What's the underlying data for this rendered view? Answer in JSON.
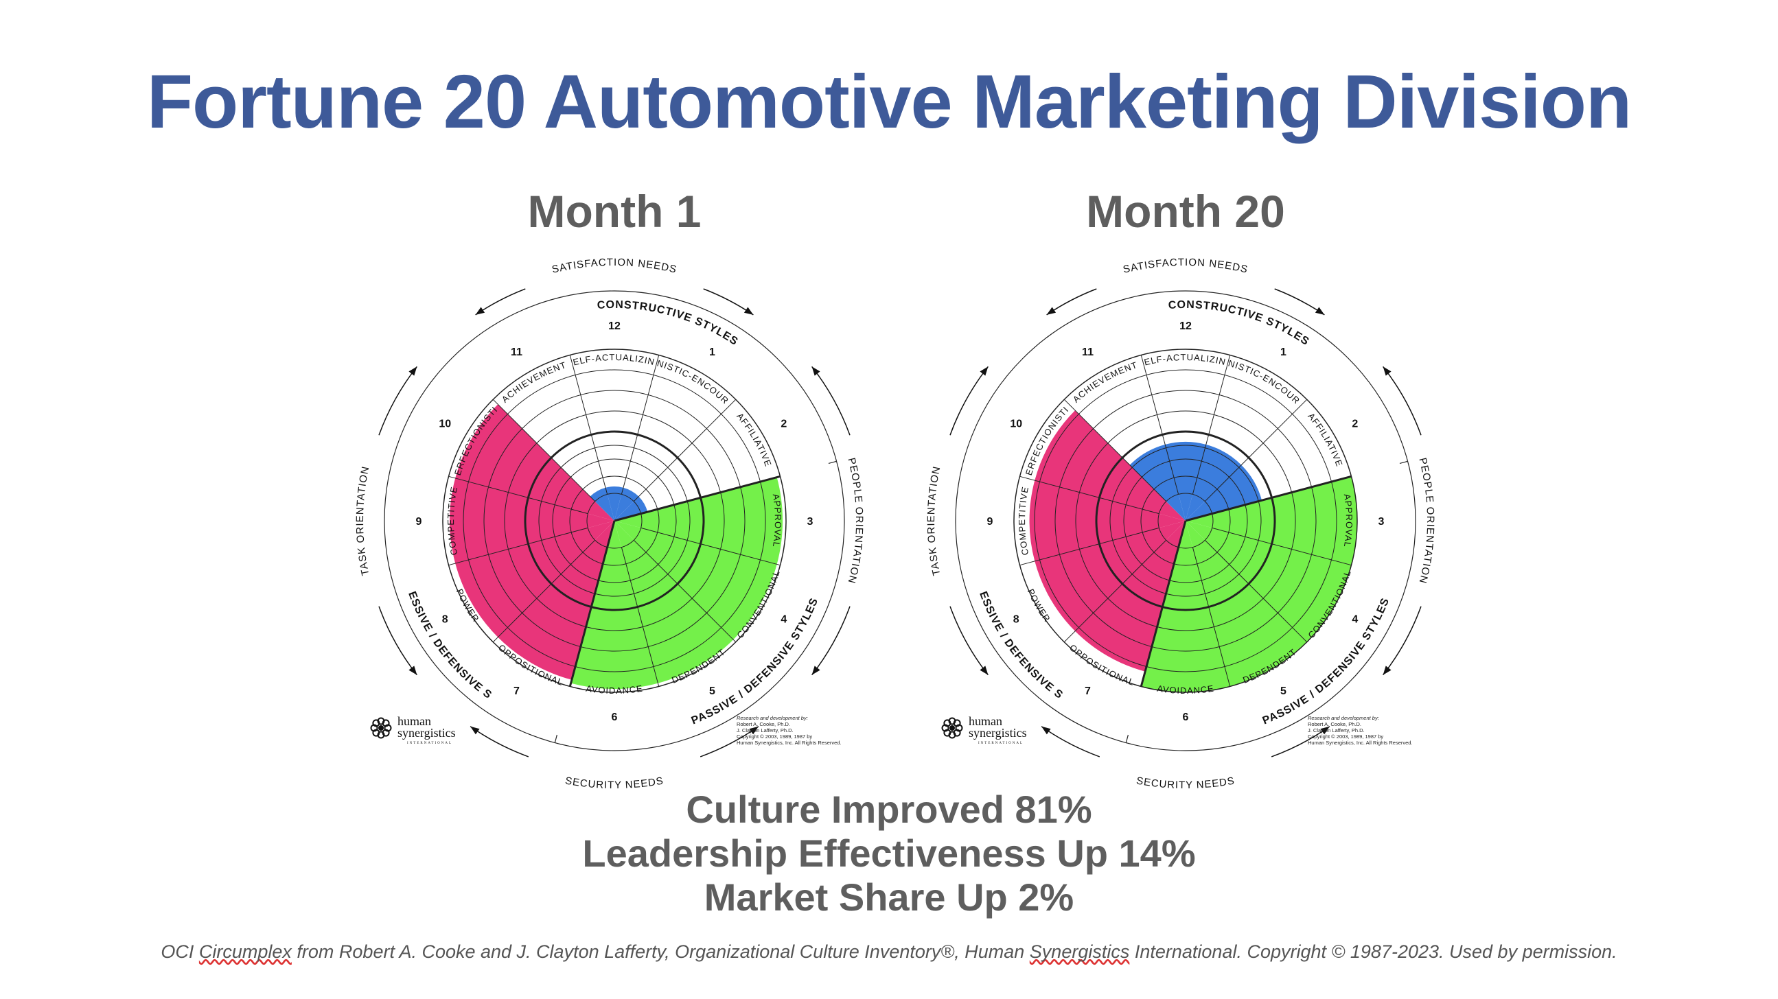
{
  "slide": {
    "title": "Fortune 20 Automotive Marketing Division",
    "results": [
      "Culture Improved 81%",
      "Leadership Effectiveness Up 14%",
      "Market Share Up 2%"
    ],
    "footnote": {
      "pre": "OCI ",
      "w1": "Circumplex",
      "mid": " from Robert A. Cooke and J. Clayton Lafferty, Organizational Culture Inventory®, Human ",
      "w2": "Synergistics",
      "post": " International. Copyright © 1987-2023. Used by permission."
    }
  },
  "circumplex_labels": {
    "styles": [
      "Self-Actualizing",
      "Humanistic-Encouraging",
      "Affiliative",
      "Approval",
      "Conventional",
      "Dependent",
      "Avoidance",
      "Oppositional",
      "Power",
      "Competitive",
      "Perfectionistic",
      "Achievement"
    ],
    "numbers": [
      "12",
      "1",
      "2",
      "3",
      "4",
      "5",
      "6",
      "7",
      "8",
      "9",
      "10",
      "11"
    ],
    "groups": [
      "CONSTRUCTIVE STYLES",
      "PASSIVE / DEFENSIVE STYLES",
      "AGGRESSIVE / DEFENSIVE STYLES"
    ],
    "needs": [
      "SATISFACTION NEEDS",
      "SECURITY NEEDS"
    ],
    "orientations": [
      "PEOPLE ORIENTATION",
      "TASK ORIENTATION"
    ],
    "logo": {
      "line1": "human",
      "line2": "synergistics",
      "line3": "INTERNATIONAL"
    },
    "credit": [
      "Research and development by:",
      "Robert A. Cooke, Ph.D.",
      "J. Clayton Lafferty, Ph.D.",
      "Copyright © 2003, 1989, 1987 by",
      "Human Synergistics, Inc. All Rights Reserved."
    ]
  },
  "chart_data": [
    {
      "type": "circumplex",
      "title": "Month 1",
      "clusters": [
        {
          "name": "Constructive",
          "color": "#3b7ddd",
          "styles": [
            "Self-Actualizing",
            "Humanistic-Encouraging",
            "Affiliative",
            "Achievement"
          ],
          "level": 0.2
        },
        {
          "name": "Passive / Defensive",
          "color": "#74f04a",
          "styles": [
            "Approval",
            "Conventional",
            "Dependent",
            "Avoidance"
          ],
          "level": 0.98
        },
        {
          "name": "Aggressive / Defensive",
          "color": "#e8357a",
          "styles": [
            "Oppositional",
            "Power",
            "Competitive",
            "Perfectionistic"
          ],
          "level": 0.96
        }
      ]
    },
    {
      "type": "circumplex",
      "title": "Month 20",
      "clusters": [
        {
          "name": "Constructive",
          "color": "#3b7ddd",
          "styles": [
            "Self-Actualizing",
            "Humanistic-Encouraging",
            "Affiliative",
            "Achievement"
          ],
          "level": 0.46
        },
        {
          "name": "Passive / Defensive",
          "color": "#74f04a",
          "styles": [
            "Approval",
            "Conventional",
            "Dependent",
            "Avoidance"
          ],
          "level": 1.0
        },
        {
          "name": "Aggressive / Defensive",
          "color": "#e8357a",
          "styles": [
            "Oppositional",
            "Power",
            "Competitive",
            "Perfectionistic"
          ],
          "level": 0.91
        }
      ]
    }
  ]
}
